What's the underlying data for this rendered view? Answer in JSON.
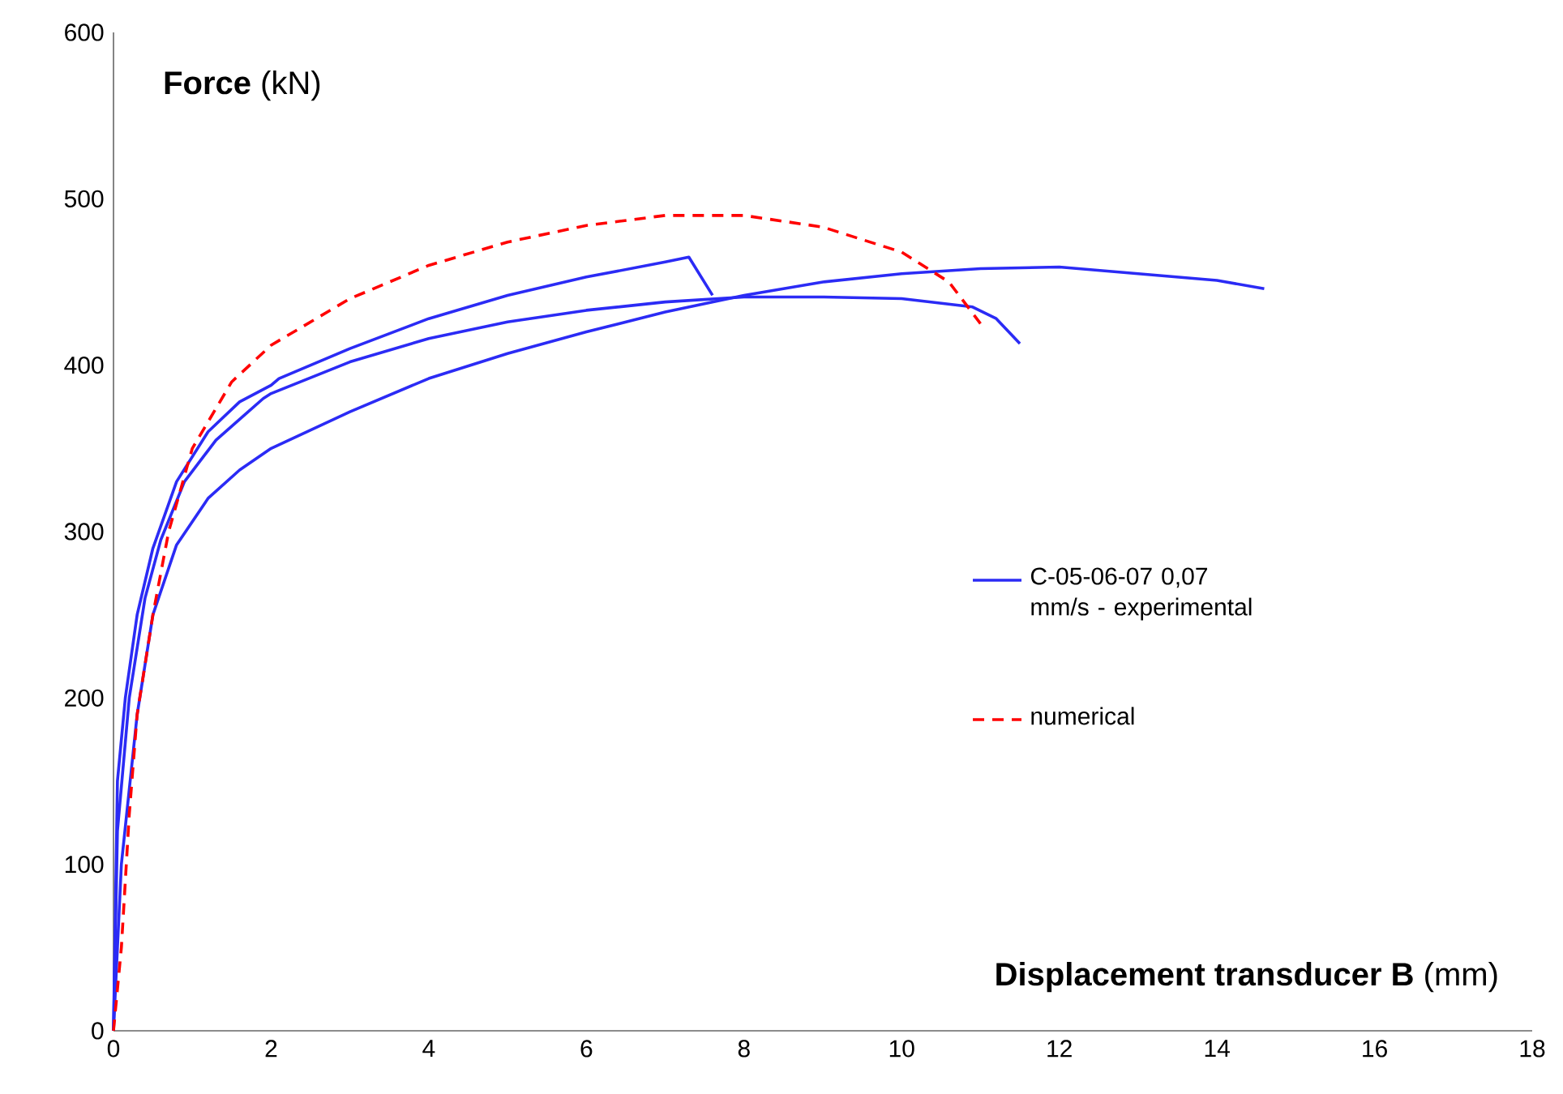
{
  "chart_data": {
    "type": "line",
    "xlabel": "**Displacement transducer B** (mm)",
    "ylabel": "**Force** (kN)",
    "xlim": [
      0,
      18
    ],
    "xticks": [
      0,
      2,
      4,
      6,
      8,
      10,
      12,
      14,
      16,
      18
    ],
    "ylim": [
      0,
      600
    ],
    "yticks": [
      0,
      100,
      200,
      300,
      400,
      500,
      600
    ],
    "legend": "right",
    "marker": "none",
    "series": [
      {
        "name": "C-05-06-07 0,07 mm/s - experimental",
        "color": "#2b2bf5",
        "line_style": "solid",
        "x": [
          0,
          0.05,
          0.15,
          0.3,
          0.5,
          0.8,
          1.2,
          1.6,
          2.0,
          2.1,
          3,
          4,
          5,
          6,
          7,
          7.3,
          7.6
        ],
        "values": [
          0,
          150,
          200,
          250,
          290,
          330,
          360,
          378,
          388,
          392,
          410,
          428,
          442,
          453,
          462,
          465,
          442
        ]
      },
      {
        "color": "#2b2bf5",
        "line_style": "solid",
        "x": [
          0,
          0.05,
          0.2,
          0.4,
          0.6,
          0.9,
          1.3,
          1.9,
          2,
          3,
          4,
          5,
          6,
          7,
          8,
          9,
          10,
          10.9,
          11.2,
          11.5
        ],
        "values": [
          0,
          120,
          200,
          260,
          295,
          330,
          355,
          380,
          383,
          402,
          416,
          426,
          433,
          438,
          441,
          441,
          440,
          435,
          428,
          413
        ]
      },
      {
        "color": "#2b2bf5",
        "line_style": "solid",
        "x": [
          0,
          0.1,
          0.3,
          0.5,
          0.8,
          1.2,
          1.6,
          2,
          3,
          4,
          5,
          6,
          7,
          8,
          9,
          10,
          11,
          12,
          13,
          14,
          14.6
        ],
        "values": [
          0,
          100,
          190,
          250,
          292,
          320,
          337,
          350,
          372,
          392,
          407,
          420,
          432,
          442,
          450,
          455,
          458,
          459,
          455,
          451,
          446
        ]
      },
      {
        "name": "numerical",
        "color": "#ff0000",
        "line_style": "dashed",
        "x": [
          0,
          0.1,
          0.2,
          0.3,
          0.5,
          0.7,
          1,
          1.5,
          2,
          3,
          4,
          5,
          6,
          7,
          8,
          9,
          10,
          10.6,
          11
        ],
        "values": [
          0,
          50,
          130,
          190,
          250,
          300,
          350,
          390,
          412,
          440,
          460,
          474,
          484,
          490,
          490,
          483,
          468,
          450,
          425
        ]
      }
    ]
  }
}
